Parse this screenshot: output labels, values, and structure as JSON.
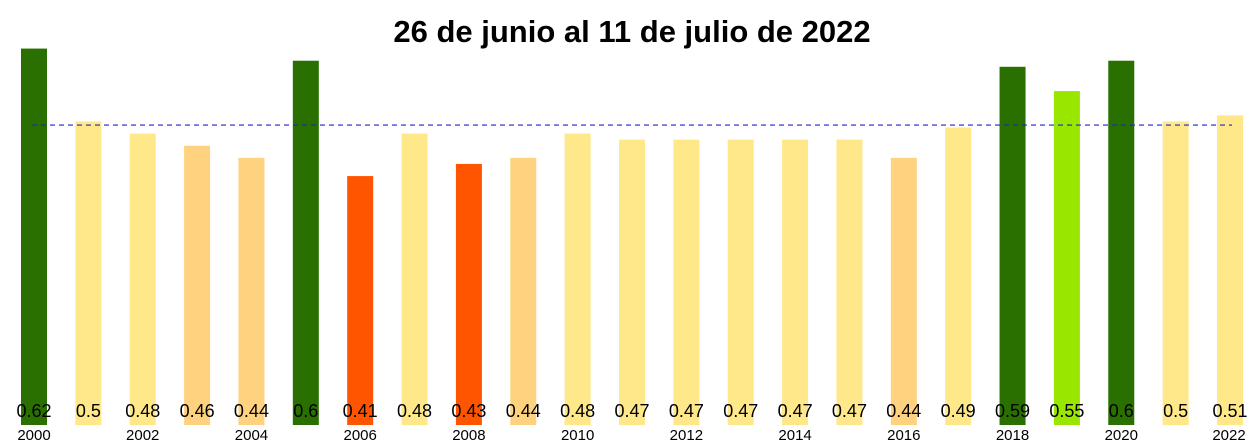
{
  "chart_data": {
    "type": "bar",
    "title": "26 de junio al 11 de julio de 2022",
    "categories": [
      "2000",
      null,
      "2002",
      null,
      "2004",
      null,
      "2006",
      null,
      "2008",
      null,
      "2010",
      null,
      "2012",
      null,
      "2014",
      null,
      "2016",
      null,
      "2018",
      null,
      "2020",
      null,
      "2022"
    ],
    "values": [
      0.62,
      0.5,
      0.48,
      0.46,
      0.44,
      0.6,
      0.41,
      0.48,
      0.43,
      0.44,
      0.48,
      0.47,
      0.47,
      0.47,
      0.47,
      0.47,
      0.44,
      0.49,
      0.59,
      0.55,
      0.6,
      0.5,
      0.51
    ],
    "colors": [
      "#2a7000",
      "#ffe88a",
      "#ffe88a",
      "#ffd27f",
      "#ffd27f",
      "#2a7000",
      "#ff5500",
      "#ffe88a",
      "#ff5500",
      "#ffd27f",
      "#ffe88a",
      "#ffe88a",
      "#ffe88a",
      "#ffe88a",
      "#ffe88a",
      "#ffe88a",
      "#ffd27f",
      "#ffe88a",
      "#2a7000",
      "#99e600",
      "#2a7000",
      "#ffe88a",
      "#ffe88a"
    ],
    "ylim": [
      0,
      0.7
    ],
    "reference_line": 0.494,
    "reference_color": "#2222cc"
  }
}
